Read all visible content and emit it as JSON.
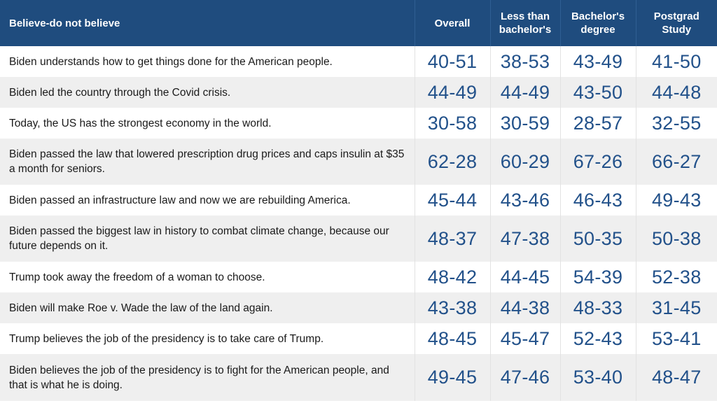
{
  "table": {
    "headers": {
      "statement": "Believe-do not believe",
      "overall": "Overall",
      "less_than_bachelors": "Less than bachelor's",
      "bachelors": "Bachelor's degree",
      "postgrad": "Postgrad Study"
    },
    "rows": [
      {
        "statement": "Biden understands how to get things done for the American people.",
        "overall": "40-51",
        "less": "38-53",
        "bachelors": "43-49",
        "postgrad": "41-50"
      },
      {
        "statement": "Biden led the country through the Covid crisis.",
        "overall": "44-49",
        "less": "44-49",
        "bachelors": "43-50",
        "postgrad": "44-48"
      },
      {
        "statement": "Today, the US has the strongest economy in the world.",
        "overall": "30-58",
        "less": "30-59",
        "bachelors": "28-57",
        "postgrad": "32-55"
      },
      {
        "statement": "Biden passed the law that lowered prescription drug prices and caps insulin at $35 a month for seniors.",
        "overall": "62-28",
        "less": "60-29",
        "bachelors": "67-26",
        "postgrad": "66-27"
      },
      {
        "statement": "Biden passed an infrastructure law and now we are rebuilding America.",
        "overall": "45-44",
        "less": "43-46",
        "bachelors": "46-43",
        "postgrad": "49-43"
      },
      {
        "statement": "Biden passed the biggest law in history to combat climate change, because our future depends on it.",
        "overall": "48-37",
        "less": "47-38",
        "bachelors": "50-35",
        "postgrad": "50-38"
      },
      {
        "statement": "Trump took away the freedom of a woman to choose.",
        "overall": "48-42",
        "less": "44-45",
        "bachelors": "54-39",
        "postgrad": "52-38"
      },
      {
        "statement": "Biden will make Roe v. Wade the law of the land again.",
        "overall": "43-38",
        "less": "44-38",
        "bachelors": "48-33",
        "postgrad": "31-45"
      },
      {
        "statement": "Trump believes the job of the presidency is to take care of Trump.",
        "overall": "48-45",
        "less": "45-47",
        "bachelors": "52-43",
        "postgrad": "53-41"
      },
      {
        "statement": "Biden believes the job of the presidency is to fight for the American people, and that is what he is doing.",
        "overall": "49-45",
        "less": "47-46",
        "bachelors": "53-40",
        "postgrad": "48-47"
      }
    ]
  }
}
